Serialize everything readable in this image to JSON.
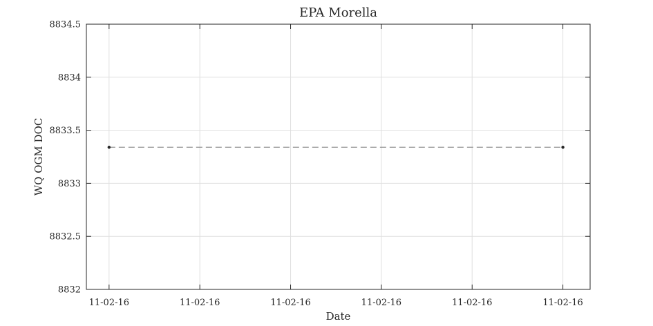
{
  "chart_data": {
    "type": "line",
    "title": "EPA Morella",
    "xlabel": "Date",
    "ylabel": "WQ OGM DOC",
    "x_tick_labels": [
      "11-02-16",
      "11-02-16",
      "11-02-16",
      "11-02-16",
      "11-02-16",
      "11-02-16"
    ],
    "y_tick_labels": [
      "8832",
      "8832.5",
      "8833",
      "8833.5",
      "8834",
      "8834.5"
    ],
    "y_ticks": [
      8832,
      8832.5,
      8833,
      8833.5,
      8834,
      8834.5
    ],
    "ylim": [
      8832,
      8834.5
    ],
    "xlim": [
      -0.25,
      5.3
    ],
    "grid": true,
    "series": [
      {
        "x": [
          0,
          5
        ],
        "y": [
          8833.34,
          8833.34
        ],
        "line_style": "dashed",
        "line_color": "#888888",
        "marker_color": "#262626"
      }
    ]
  }
}
